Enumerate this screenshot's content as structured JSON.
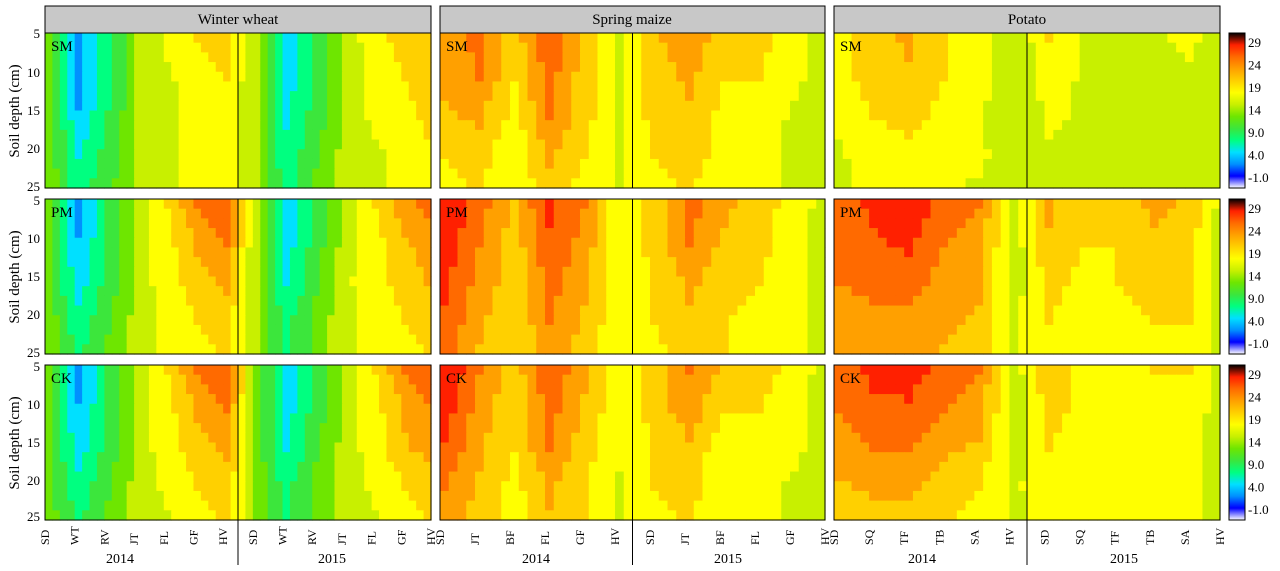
{
  "figure": {
    "columns": [
      "Winter wheat",
      "Spring maize",
      "Potato"
    ],
    "row_labels": [
      "SM",
      "PM",
      "CK"
    ],
    "y_axis_label": "Soil depth (cm)",
    "depth_ticks": [
      "5",
      "10",
      "15",
      "20",
      "25"
    ],
    "colorbar_ticks": [
      "29",
      "24",
      "19",
      "14",
      "9.0",
      "4.0",
      "-1.0"
    ],
    "colorbar_colors": [
      "#ffffff",
      "#0000ff",
      "#0090ff",
      "#00e0ff",
      "#00ff80",
      "#3ce63c",
      "#6ee600",
      "#c8f000",
      "#ffff00",
      "#ffd000",
      "#ffa000",
      "#ff6a00",
      "#ff2000",
      "#000000"
    ]
  },
  "chart_data": [
    {
      "type": "contour",
      "column": "Winter wheat",
      "x_stages": [
        "SD",
        "WT",
        "RV",
        "JT",
        "FL",
        "GF",
        "HV",
        "SD",
        "WT",
        "RV",
        "JT",
        "FL",
        "GF",
        "HV"
      ],
      "x_years": [
        "2014",
        "2015"
      ],
      "y_depths_cm": [
        5,
        10,
        15,
        20,
        25
      ],
      "zlim": [
        -1,
        29
      ],
      "panels": [
        {
          "name": "SM",
          "surface": [
            [
              13,
              3,
              8,
              14,
              17,
              19,
              20,
              14,
              5,
              9,
              15,
              18,
              20,
              21
            ],
            [
              13,
              3,
              8,
              14,
              16,
              18,
              19,
              14,
              5,
              9,
              15,
              17,
              19,
              21
            ],
            [
              13,
              4,
              9,
              14,
              16,
              17,
              18,
              14,
              6,
              10,
              15,
              17,
              18,
              20
            ],
            [
              13,
              6,
              10,
              14,
              16,
              17,
              18,
              14,
              7,
              11,
              15,
              16,
              17,
              19
            ],
            [
              13,
              8,
              11,
              14,
              16,
              17,
              18,
              14,
              8,
              12,
              15,
              16,
              17,
              18
            ]
          ]
        },
        {
          "name": "PM",
          "surface": [
            [
              12,
              3,
              9,
              15,
              19,
              24,
              26,
              14,
              5,
              9,
              15,
              19,
              23,
              25
            ],
            [
              12,
              4,
              9,
              15,
              18,
              22,
              24,
              14,
              5,
              10,
              15,
              18,
              21,
              24
            ],
            [
              12,
              5,
              10,
              15,
              18,
              20,
              22,
              14,
              6,
              11,
              16,
              18,
              20,
              22
            ],
            [
              13,
              7,
              11,
              15,
              17,
              19,
              20,
              14,
              8,
              12,
              16,
              17,
              19,
              20
            ],
            [
              13,
              9,
              12,
              15,
              17,
              18,
              19,
              14,
              9,
              12,
              16,
              17,
              18,
              19
            ]
          ]
        },
        {
          "name": "CK",
          "surface": [
            [
              12,
              3,
              9,
              15,
              19,
              24,
              26,
              13,
              5,
              9,
              15,
              19,
              24,
              26
            ],
            [
              12,
              4,
              9,
              15,
              18,
              22,
              24,
              13,
              5,
              10,
              15,
              18,
              22,
              24
            ],
            [
              12,
              5,
              10,
              15,
              18,
              20,
              22,
              13,
              6,
              11,
              15,
              18,
              21,
              23
            ],
            [
              12,
              7,
              11,
              15,
              17,
              19,
              20,
              13,
              8,
              12,
              15,
              17,
              19,
              20
            ],
            [
              13,
              9,
              12,
              15,
              16,
              18,
              19,
              14,
              9,
              12,
              15,
              16,
              18,
              19
            ]
          ]
        }
      ]
    },
    {
      "type": "contour",
      "column": "Spring maize",
      "x_stages": [
        "SD",
        "JT",
        "BF",
        "FL",
        "GF",
        "HV",
        "SD",
        "JT",
        "BF",
        "FL",
        "GF",
        "HV"
      ],
      "x_years": [
        "2014",
        "2015"
      ],
      "y_depths_cm": [
        5,
        10,
        15,
        20,
        25
      ],
      "zlim": [
        -1,
        29
      ],
      "panels": [
        {
          "name": "SM",
          "surface": [
            [
              22,
              25,
              20,
              26,
              21,
              16,
              21,
              23,
              20,
              20,
              17,
              15
            ],
            [
              22,
              24,
              19,
              25,
              20,
              16,
              20,
              22,
              19,
              19,
              17,
              15
            ],
            [
              21,
              22,
              18,
              24,
              20,
              16,
              20,
              21,
              18,
              18,
              16,
              15
            ],
            [
              19,
              20,
              17,
              22,
              19,
              16,
              19,
              20,
              18,
              17,
              16,
              15
            ],
            [
              18,
              19,
              17,
              20,
              18,
              16,
              18,
              19,
              17,
              17,
              16,
              15
            ]
          ]
        },
        {
          "name": "PM",
          "surface": [
            [
              29,
              25,
              21,
              27,
              24,
              17,
              20,
              25,
              22,
              20,
              18,
              15
            ],
            [
              28,
              24,
              20,
              26,
              23,
              17,
              20,
              24,
              21,
              20,
              17,
              15
            ],
            [
              27,
              23,
              20,
              25,
              22,
              17,
              19,
              22,
              20,
              19,
              17,
              15
            ],
            [
              26,
              22,
              19,
              24,
              21,
              17,
              19,
              21,
              19,
              18,
              17,
              15
            ],
            [
              25,
              21,
              19,
              23,
              20,
              17,
              18,
              20,
              19,
              18,
              17,
              15
            ]
          ]
        },
        {
          "name": "CK",
          "surface": [
            [
              29,
              24,
              20,
              26,
              22,
              17,
              20,
              24,
              21,
              20,
              18,
              15
            ],
            [
              28,
              23,
              19,
              25,
              21,
              17,
              20,
              23,
              19,
              19,
              17,
              15
            ],
            [
              26,
              22,
              19,
              24,
              20,
              17,
              19,
              21,
              17,
              18,
              17,
              15
            ],
            [
              24,
              21,
              18,
              22,
              19,
              16,
              19,
              20,
              17,
              17,
              16,
              15
            ],
            [
              23,
              20,
              18,
              21,
              19,
              16,
              18,
              19,
              17,
              17,
              16,
              15
            ]
          ]
        }
      ]
    },
    {
      "type": "contour",
      "column": "Potato",
      "x_stages": [
        "SD",
        "SQ",
        "TF",
        "TB",
        "SA",
        "HV",
        "SD",
        "SQ",
        "TF",
        "TB",
        "SA",
        "HV"
      ],
      "x_years": [
        "2014",
        "2015"
      ],
      "y_depths_cm": [
        5,
        10,
        15,
        20,
        25
      ],
      "zlim": [
        -1,
        29
      ],
      "panels": [
        {
          "name": "SM",
          "surface": [
            [
              18,
              20,
              22,
              19,
              18,
              14,
              19,
              16,
              16,
              16,
              17,
              15
            ],
            [
              18,
              20,
              21,
              19,
              18,
              14,
              18,
              16,
              16,
              16,
              16,
              15
            ],
            [
              17,
              19,
              20,
              18,
              17,
              14,
              17,
              16,
              16,
              16,
              16,
              15
            ],
            [
              16,
              18,
              18,
              17,
              17,
              15,
              16,
              16,
              16,
              16,
              16,
              15
            ],
            [
              16,
              17,
              17,
              17,
              16,
              15,
              16,
              16,
              16,
              16,
              16,
              15
            ]
          ]
        },
        {
          "name": "PM",
          "surface": [
            [
              25,
              27,
              29,
              25,
              24,
              15,
              22,
              19,
              20,
              22,
              21,
              15
            ],
            [
              25,
              26,
              27,
              24,
              23,
              15,
              21,
              19,
              19,
              21,
              20,
              15
            ],
            [
              24,
              25,
              25,
              23,
              22,
              15,
              20,
              18,
              19,
              20,
              19,
              15
            ],
            [
              23,
              23,
              23,
              22,
              21,
              16,
              19,
              18,
              18,
              19,
              19,
              15
            ],
            [
              22,
              22,
              22,
              21,
              20,
              16,
              18,
              18,
              18,
              18,
              18,
              15
            ]
          ]
        },
        {
          "name": "CK",
          "surface": [
            [
              25,
              27,
              28,
              25,
              24,
              15,
              21,
              18,
              18,
              19,
              19,
              15
            ],
            [
              24,
              26,
              26,
              24,
              23,
              15,
              20,
              18,
              18,
              18,
              18,
              15
            ],
            [
              23,
              24,
              24,
              22,
              21,
              15,
              19,
              17,
              17,
              17,
              17,
              15
            ],
            [
              21,
              22,
              22,
              20,
              19,
              16,
              18,
              17,
              17,
              17,
              17,
              15
            ],
            [
              20,
              20,
              20,
              19,
              18,
              16,
              17,
              17,
              17,
              17,
              17,
              15
            ]
          ]
        }
      ]
    }
  ]
}
